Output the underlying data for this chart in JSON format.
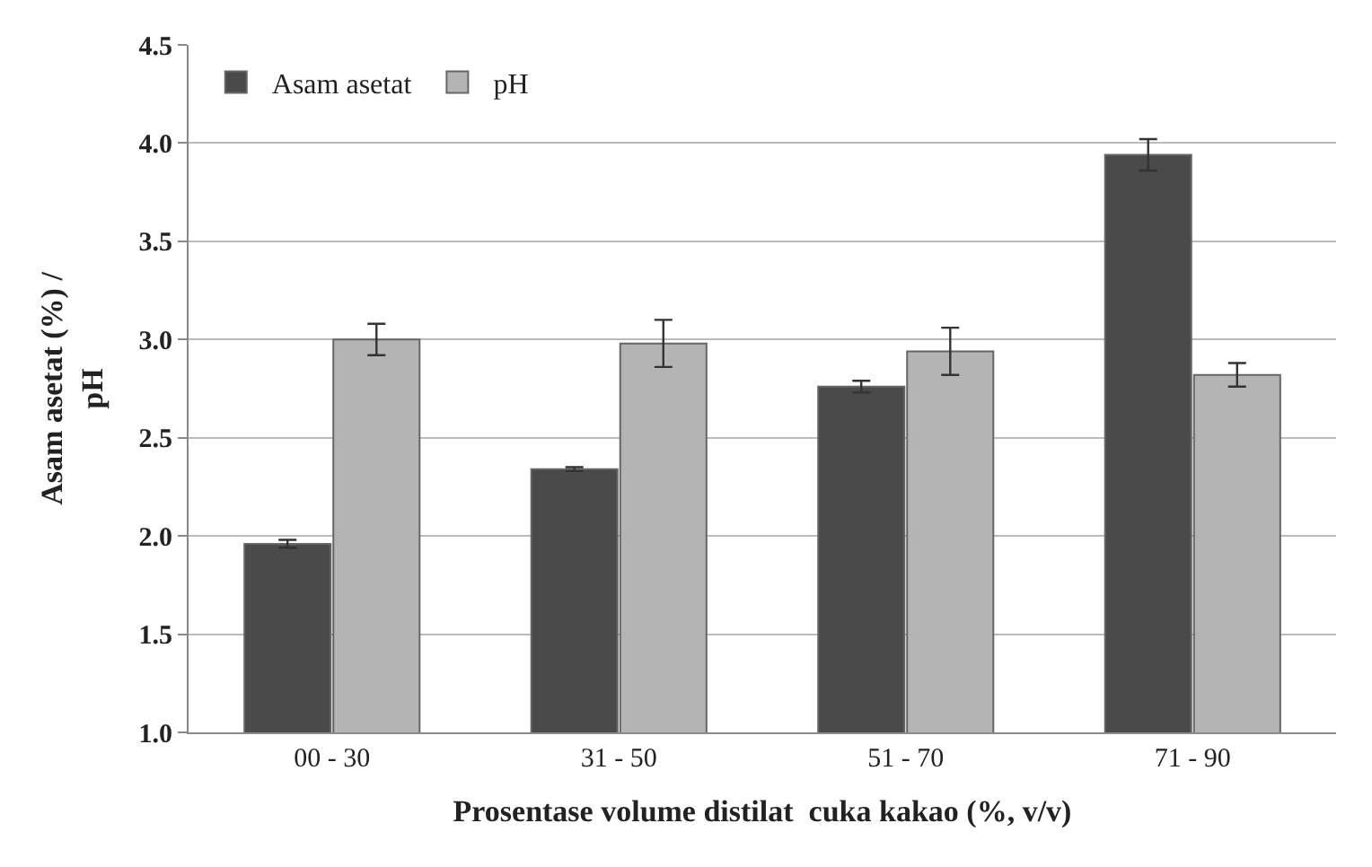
{
  "chart_data": {
    "type": "bar",
    "xlabel": "Prosentase volume distilat  cuka kakao (%, v/v)",
    "ylabel": "Asam asetat (%) /\npH",
    "categories": [
      "00 - 30",
      "31 - 50",
      "51 - 70",
      "71 - 90"
    ],
    "series": [
      {
        "name": "Asam asetat",
        "color": "#4a4a4a",
        "values": [
          1.96,
          2.34,
          2.76,
          3.94
        ],
        "errors": [
          0.02,
          0.01,
          0.03,
          0.08
        ]
      },
      {
        "name": "pH",
        "color": "#b4b4b4",
        "values": [
          3.0,
          2.98,
          2.94,
          2.82
        ],
        "errors": [
          0.08,
          0.12,
          0.12,
          0.06
        ]
      }
    ],
    "ylim": [
      1.0,
      4.5
    ],
    "yticks": [
      {
        "value": 1.0,
        "label": "1.0"
      },
      {
        "value": 1.5,
        "label": "1.5"
      },
      {
        "value": 2.0,
        "label": "2.0"
      },
      {
        "value": 2.5,
        "label": "2.5"
      },
      {
        "value": 3.0,
        "label": "3.0"
      },
      {
        "value": 3.5,
        "label": "3.5"
      },
      {
        "value": 4.0,
        "label": "4.0"
      },
      {
        "value": 4.5,
        "label": "4.5"
      }
    ],
    "grid": "y",
    "legend": "top left"
  }
}
